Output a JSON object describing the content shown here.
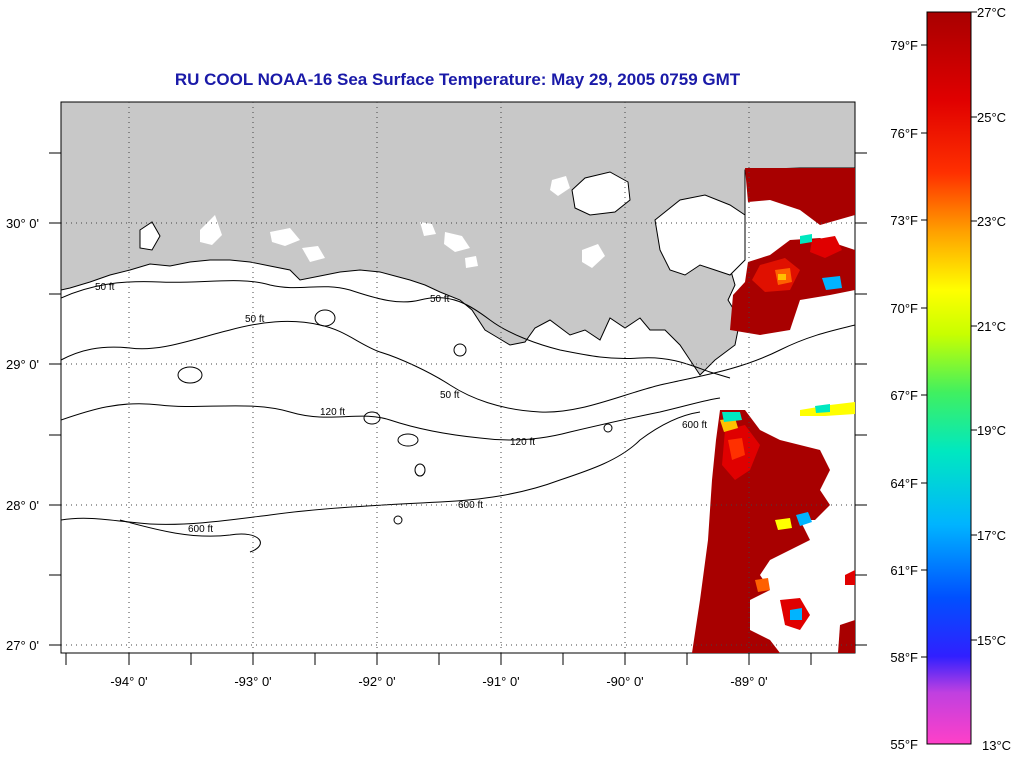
{
  "title": "RU COOL  NOAA-16  Sea Surface Temperature:  May 29, 2005 0759 GMT",
  "lat_labels": [
    "30° 0'",
    "29° 0'",
    "28° 0'",
    "27° 0'"
  ],
  "lon_labels": [
    "-94° 0'",
    "-93° 0'",
    "-92° 0'",
    "-91° 0'",
    "-90° 0'",
    "-89° 0'"
  ],
  "contour_labels": {
    "c50": "50 ft",
    "c120": "120 ft",
    "c600": "600 ft"
  },
  "colorbar": {
    "fahrenheit": [
      "79°F",
      "76°F",
      "73°F",
      "70°F",
      "67°F",
      "64°F",
      "61°F",
      "58°F",
      "55°F"
    ],
    "celsius": [
      "27°C",
      "25°C",
      "23°C",
      "21°C",
      "19°C",
      "17°C",
      "15°C",
      "13°C"
    ]
  },
  "colors": {
    "land": "#c8c8c8",
    "hot": "#a80000",
    "title": "#1a1aa8"
  }
}
